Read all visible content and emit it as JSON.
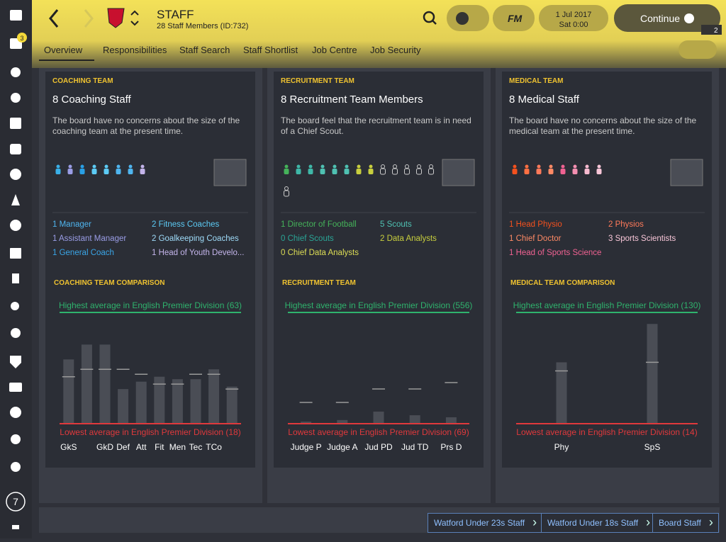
{
  "header": {
    "title": "STAFF",
    "subtitle": "28 Staff Members (ID:732)",
    "badge": "3",
    "brand": "FM",
    "date": "1 Jul 2017",
    "time": "Sat 0:00",
    "continue": "Continue",
    "user_count": "2"
  },
  "sidebar": {
    "counter": "7"
  },
  "tabs": [
    "Overview",
    "Responsibilities",
    "Staff Search",
    "Staff Shortlist",
    "Job Centre",
    "Job Security"
  ],
  "panels": [
    {
      "section": "COACHING TEAM",
      "heading": "8 Coaching Staff",
      "description": "The board have no concerns about the size of the coaching team at the present time.",
      "roles": [
        [
          {
            "text": "1 Manager",
            "color": "#4fb5ef"
          },
          {
            "text": "1 Assistant Manager",
            "color": "#9a9de6"
          },
          {
            "text": "1 General Coach",
            "color": "#3aa6e8"
          }
        ],
        [
          {
            "text": "2 Fitness Coaches",
            "color": "#5ccbf5"
          },
          {
            "text": "2 Goalkeeping Coaches",
            "color": "#9fdcfa"
          },
          {
            "text": "1 Head of Youth Develo...",
            "color": "#c3b4ea"
          }
        ]
      ],
      "chart_data": {
        "type": "bar",
        "title": "COACHING TEAM COMPARISON",
        "categories": [
          "GkS",
          null,
          "GkD",
          "Def",
          "Att",
          "Fit",
          "Men",
          "Tec",
          "TCo",
          null
        ],
        "values": [
          44,
          50,
          50,
          32,
          35,
          37,
          36,
          36,
          40,
          33
        ],
        "markers": [
          37,
          40,
          40,
          40,
          38,
          34,
          34,
          38,
          38,
          32
        ],
        "color": "#4a4d55",
        "marker_color": "#9a9a9a",
        "high": {
          "value": 63,
          "label": "Highest average in English Premier Division (63)",
          "color": "#2fb36d"
        },
        "low": {
          "value": 18,
          "label": "Lowest average in English Premier Division (18)",
          "color": "#e0393c"
        }
      }
    },
    {
      "section": "RECRUITMENT TEAM",
      "heading": "8 Recruitment Team Members",
      "description": "The board feel that the recruitment team is in need of a Chief Scout.",
      "roles": [
        [
          {
            "text": "1 Director of Football",
            "color": "#45b35a"
          },
          {
            "text": "0 Chief Scouts",
            "color": "#2aa596"
          },
          {
            "text": "0 Chief Data Analysts",
            "color": "#dede55"
          }
        ],
        [
          {
            "text": "5 Scouts",
            "color": "#4fc1b2"
          },
          {
            "text": "2 Data Analysts",
            "color": "#c8cf3e"
          }
        ]
      ],
      "chart_data": {
        "type": "bar",
        "title": "RECRUITMENT TEAM",
        "categories": [
          "Judge P",
          "Judge A",
          "Jud PD",
          "Jud TD",
          "Prs D"
        ],
        "values": [
          78,
          85,
          122,
          106,
          97
        ],
        "markers": [
          162,
          162,
          221,
          221,
          249
        ],
        "color": "#4a4d55",
        "marker_color": "#9a9a9a",
        "high": {
          "value": 556,
          "label": "Highest average in English Premier Division (556)",
          "color": "#2fb36d"
        },
        "low": {
          "value": 69,
          "label": "Lowest average in English Premier Division (69)",
          "color": "#e0393c"
        }
      }
    },
    {
      "section": "MEDICAL TEAM",
      "heading": "8 Medical Staff",
      "description": "The board have no concerns about the size of the medical team at the present time.",
      "roles": [
        [
          {
            "text": "1 Head Physio",
            "color": "#f4511e"
          },
          {
            "text": "1 Chief Doctor",
            "color": "#ff8a65"
          },
          {
            "text": "1 Head of Sports Science",
            "color": "#f06292"
          }
        ],
        [
          {
            "text": "2 Physios",
            "color": "#ff7a5a"
          },
          {
            "text": "3 Sports Scientists",
            "color": "#f8c6d8"
          }
        ]
      ],
      "chart_data": {
        "type": "bar",
        "title": "MEDICAL TEAM COMPARISON",
        "categories": [
          "Phy",
          "SpS"
        ],
        "values": [
          78,
          118
        ],
        "markers": [
          69,
          78
        ],
        "color": "#4a4d55",
        "marker_color": "#9a9a9a",
        "high": {
          "value": 130,
          "label": "Highest average in English Premier Division (130)",
          "color": "#2fb36d"
        },
        "low": {
          "value": 14,
          "label": "Lowest average in English Premier Division (14)",
          "color": "#e0393c"
        }
      }
    }
  ],
  "footer_links": [
    "Watford Under 23s Staff",
    "Watford Under 18s Staff",
    "Board Staff"
  ]
}
